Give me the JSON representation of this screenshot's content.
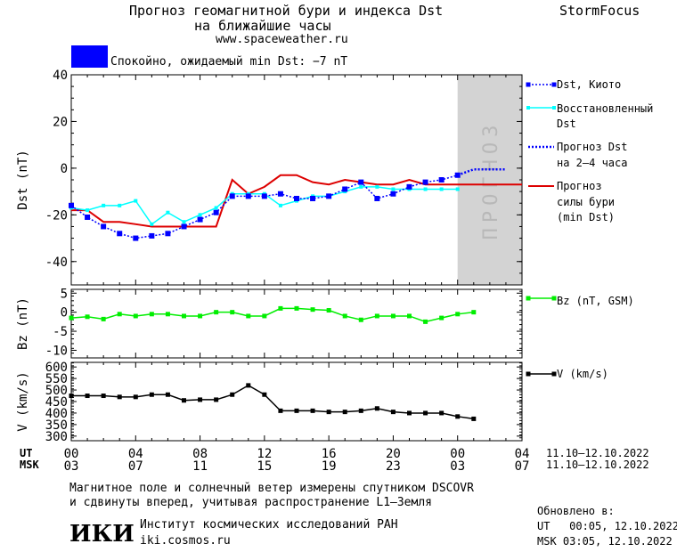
{
  "header": {
    "title_line1": "Прогноз геомагнитной бури и индекса Dst",
    "title_line2": "на ближайшие часы",
    "website": "www.spaceweather.ru",
    "brand": "StormFocus",
    "status_text": "Спокойно, ожидаемый min Dst: −7 nT",
    "status_color": "#0000ff"
  },
  "forecast_band_label": "ПРОГНОЗ",
  "legend": {
    "dst_kyoto": "Dst, Киото",
    "dst_restored_1": "Восстановленный",
    "dst_restored_2": "Dst",
    "dst_forecast_1": "Прогноз Dst",
    "dst_forecast_2": "на 2–4 часа",
    "storm_forecast_1": "Прогноз",
    "storm_forecast_2": "силы бури",
    "storm_forecast_3": "(min Dst)",
    "bz": "Bz (nT, GSM)",
    "v": "V (km/s)"
  },
  "axes": {
    "dst_ylabel": "Dst (nT)",
    "bz_ylabel": "Bz (nT)",
    "v_ylabel": "V (km/s)",
    "ut_label": "UT",
    "msk_label": "MSK",
    "ut_ticks": [
      "00",
      "04",
      "08",
      "12",
      "16",
      "20",
      "00",
      "04"
    ],
    "msk_ticks": [
      "03",
      "07",
      "11",
      "15",
      "19",
      "23",
      "03",
      "07"
    ],
    "ut_range": "11.10–12.10.2022",
    "msk_range": "11.10–12.10.2022"
  },
  "footer": {
    "note_line1": "Магнитное поле и солнечный ветер измерены спутником DSCOVR",
    "note_line2": "и сдвинуты вперед, учитывая распространение L1–Земля",
    "org_logo": "ИКИ",
    "org_name": "Институт космических исследований РАН",
    "org_site": "iki.cosmos.ru",
    "updated_label": "Обновлено в:",
    "updated_ut": "UT   00:05, 12.10.2022",
    "updated_msk": "MSK 03:05, 12.10.2022"
  },
  "colors": {
    "dst_kyoto": "#0000ff",
    "dst_restored": "#00ffff",
    "dst_forecast": "#0000ff",
    "storm_forecast": "#dd0000",
    "bz": "#00ee00",
    "v": "#000000",
    "forecast_band": "#d3d3d3"
  },
  "chart_data": [
    {
      "type": "line",
      "panel": "dst",
      "x_unit": "hours since 00 UT 11.10.2022",
      "xlim": [
        0,
        28
      ],
      "ylim": [
        -50,
        40
      ],
      "yticks": [
        -40,
        -20,
        0,
        20,
        40
      ],
      "ylabel": "Dst (nT)",
      "forecast_band": [
        24,
        28
      ],
      "series": [
        {
          "name": "Dst, Киото",
          "x": [
            0,
            1,
            2,
            3,
            4,
            5,
            6,
            7,
            8,
            9,
            10,
            11,
            12,
            13,
            14,
            15,
            16,
            17,
            18,
            19,
            20,
            21,
            22,
            23,
            24
          ],
          "y": [
            -16,
            -21,
            -25,
            -28,
            -30,
            -29,
            -28,
            -25,
            -22,
            -19,
            -12,
            -12,
            -12,
            -11,
            -13,
            -13,
            -12,
            -9,
            -6,
            -13,
            -11,
            -8,
            -6,
            -5,
            -3
          ]
        },
        {
          "name": "Восстановленный Dst",
          "x": [
            0,
            1,
            2,
            3,
            4,
            5,
            6,
            7,
            8,
            9,
            10,
            11,
            12,
            13,
            14,
            15,
            16,
            17,
            18,
            19,
            20,
            21,
            22,
            23,
            24
          ],
          "y": [
            -17,
            -18,
            -16,
            -16,
            -14,
            -24,
            -19,
            -23,
            -20,
            -17,
            -11,
            -11,
            -11,
            -16,
            -14,
            -12,
            -12,
            -10,
            -8,
            -8,
            -9,
            -9,
            -9,
            -9,
            -9
          ]
        },
        {
          "name": "Прогноз Dst на 2–4 часа",
          "x": [
            24,
            25,
            26,
            27
          ],
          "y": [
            -3,
            -0.5,
            -0.5,
            -0.5
          ]
        },
        {
          "name": "Прогноз силы бури (min Dst)",
          "x": [
            0,
            1,
            2,
            3,
            4,
            5,
            6,
            7,
            8,
            9,
            10,
            11,
            12,
            13,
            14,
            15,
            16,
            17,
            18,
            19,
            20,
            21,
            22,
            23,
            24,
            25,
            26,
            27,
            28
          ],
          "y": [
            -18,
            -18,
            -23,
            -23,
            -24,
            -25,
            -25,
            -25,
            -25,
            -25,
            -5,
            -11,
            -8,
            -3,
            -3,
            -6,
            -7,
            -5,
            -6,
            -7,
            -7,
            -5,
            -7,
            -7,
            -7,
            -7,
            -7,
            -7,
            -7
          ]
        }
      ]
    },
    {
      "type": "line",
      "panel": "bz",
      "xlim": [
        0,
        28
      ],
      "ylim": [
        -12,
        6
      ],
      "yticks": [
        -10,
        -5,
        0,
        5
      ],
      "ylabel": "Bz (nT)",
      "series": [
        {
          "name": "Bz (nT, GSM)",
          "x": [
            0,
            1,
            2,
            3,
            4,
            5,
            6,
            7,
            8,
            9,
            10,
            11,
            12,
            13,
            14,
            15,
            16,
            17,
            18,
            19,
            20,
            21,
            22,
            23,
            24,
            25
          ],
          "y": [
            -1.5,
            -1.2,
            -1.8,
            -0.5,
            -1,
            -0.5,
            -0.5,
            -1,
            -1,
            0,
            0,
            -1,
            -1,
            1,
            1,
            0.7,
            0.5,
            -1,
            -2,
            -1,
            -1,
            -1,
            -2.5,
            -1.5,
            -0.5,
            0
          ]
        }
      ]
    },
    {
      "type": "line",
      "panel": "v",
      "xlim": [
        0,
        28
      ],
      "ylim": [
        280,
        620
      ],
      "yticks": [
        300,
        350,
        400,
        450,
        500,
        550,
        600
      ],
      "ylabel": "V (km/s)",
      "series": [
        {
          "name": "V (km/s)",
          "x": [
            0,
            1,
            2,
            3,
            4,
            5,
            6,
            7,
            8,
            9,
            10,
            11,
            12,
            13,
            14,
            15,
            16,
            17,
            18,
            19,
            20,
            21,
            22,
            23,
            24,
            25
          ],
          "y": [
            475,
            475,
            475,
            470,
            470,
            480,
            480,
            455,
            458,
            458,
            480,
            520,
            480,
            410,
            410,
            410,
            405,
            405,
            410,
            420,
            405,
            400,
            400,
            400,
            385,
            375
          ]
        }
      ]
    }
  ]
}
